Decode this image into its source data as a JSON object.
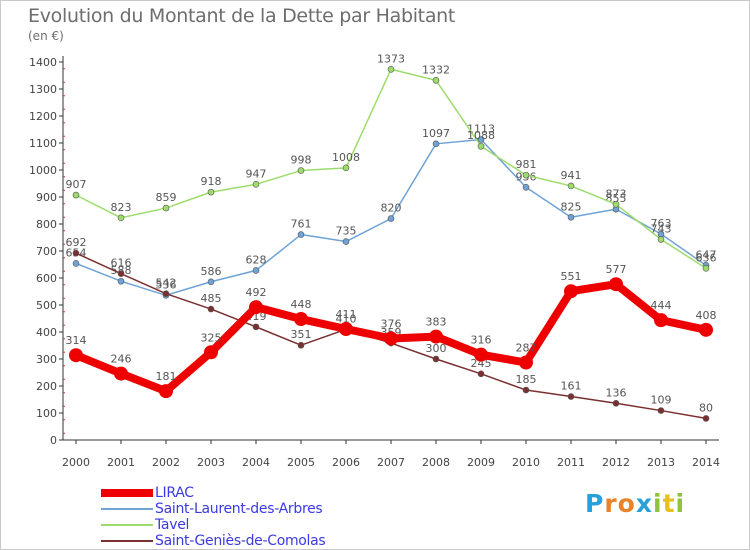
{
  "header": {
    "title": "Evolution du Montant de la Dette par Habitant",
    "unit": "(en €)"
  },
  "logo": {
    "text": "Proxiti",
    "letters": [
      "P",
      "r",
      "o",
      "x",
      "i",
      "t",
      "i"
    ],
    "colors": [
      "#2aa0d8",
      "#e8832a",
      "#e8832a",
      "#2aa0d8",
      "#8fc43a",
      "#e8c21c",
      "#8fc43a"
    ]
  },
  "chart_data": {
    "type": "line",
    "title": "Evolution du Montant de la Dette par Habitant",
    "ylabel": "(en €)",
    "xlabel": "",
    "x": [
      "2000",
      "2001",
      "2002",
      "2003",
      "2004",
      "2005",
      "2006",
      "2007",
      "2008",
      "2009",
      "2010",
      "2011",
      "2012",
      "2013",
      "2014"
    ],
    "ylim": [
      0,
      1400
    ],
    "yticks": [
      0,
      100,
      200,
      300,
      400,
      500,
      600,
      700,
      800,
      900,
      1000,
      1100,
      1200,
      1300,
      1400
    ],
    "grid": false,
    "legend_position": "bottom-left",
    "series": [
      {
        "name": "LIRAC",
        "color": "#ee0000",
        "width": 8,
        "values": [
          314,
          246,
          181,
          325,
          492,
          448,
          411,
          376,
          383,
          316,
          287,
          551,
          577,
          444,
          408
        ]
      },
      {
        "name": "Saint-Laurent-des-Arbres",
        "color": "#6fa3d6",
        "width": 1.5,
        "values": [
          654,
          588,
          536,
          586,
          628,
          761,
          735,
          820,
          1097,
          1113,
          936,
          825,
          855,
          763,
          647
        ]
      },
      {
        "name": "Tavel",
        "color": "#9ddc6a",
        "width": 1.5,
        "values": [
          907,
          823,
          859,
          918,
          947,
          998,
          1008,
          1373,
          1332,
          1088,
          981,
          941,
          873,
          743,
          636
        ]
      },
      {
        "name": "Saint-Geniès-de-Comolas",
        "color": "#7a3030",
        "width": 1.5,
        "values": [
          692,
          616,
          542,
          485,
          419,
          351,
          410,
          359,
          300,
          245,
          185,
          161,
          136,
          109,
          80
        ]
      }
    ]
  }
}
